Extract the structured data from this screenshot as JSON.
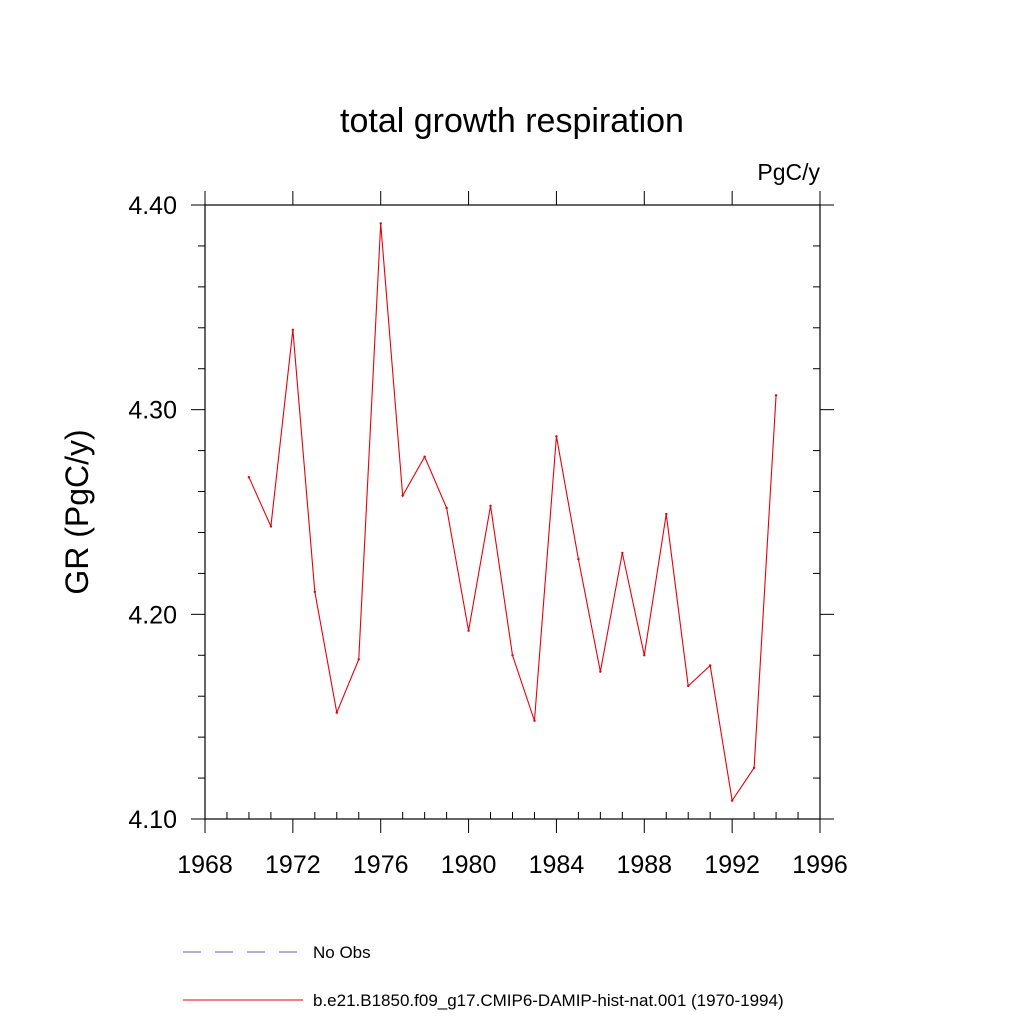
{
  "chart_data": {
    "type": "line",
    "title": "total growth respiration",
    "units_label": "PgC/y",
    "xlabel": "",
    "ylabel": "GR  (PgC/y)",
    "xlim": [
      1968,
      1996
    ],
    "ylim": [
      4.1,
      4.4
    ],
    "x_ticks": [
      1968,
      1972,
      1976,
      1980,
      1984,
      1988,
      1992,
      1996
    ],
    "y_ticks": [
      4.1,
      4.2,
      4.3,
      4.4
    ],
    "y_tick_labels": [
      "4.10",
      "4.20",
      "4.30",
      "4.40"
    ],
    "x_minor_step": 1,
    "y_minor_step": 0.02,
    "grid": false,
    "legend_placement": "bottom",
    "series": [
      {
        "name": "b.e21.B1850.f09_g17.CMIP6-DAMIP-hist-nat.001 (1970-1994)",
        "color": "#e8000b",
        "dash": "solid",
        "x": [
          1970,
          1971,
          1972,
          1973,
          1974,
          1975,
          1976,
          1977,
          1978,
          1979,
          1980,
          1981,
          1982,
          1983,
          1984,
          1985,
          1986,
          1987,
          1988,
          1989,
          1990,
          1991,
          1992,
          1993,
          1994
        ],
        "y": [
          4.267,
          4.243,
          4.339,
          4.211,
          4.152,
          4.178,
          4.391,
          4.258,
          4.277,
          4.252,
          4.192,
          4.253,
          4.18,
          4.148,
          4.287,
          4.227,
          4.172,
          4.23,
          4.18,
          4.249,
          4.165,
          4.175,
          4.109,
          4.125,
          4.307
        ]
      }
    ],
    "legend": [
      {
        "label": "No Obs",
        "color": "#6a5acd",
        "dash": "dashed"
      },
      {
        "label": "b.e21.B1850.f09_g17.CMIP6-DAMIP-hist-nat.001 (1970-1994)",
        "color": "#e8000b",
        "dash": "solid"
      }
    ]
  }
}
